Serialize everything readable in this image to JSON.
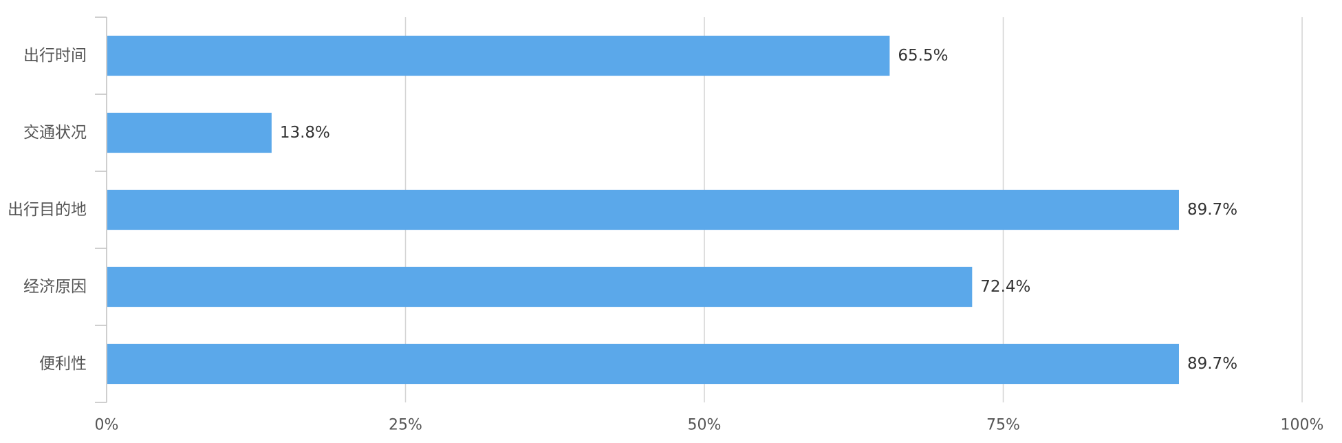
{
  "chart_data": {
    "type": "bar",
    "orientation": "horizontal",
    "categories": [
      "出行时间",
      "交通状况",
      "出行目的地",
      "经济原因",
      "便利性"
    ],
    "values": [
      65.5,
      13.8,
      89.7,
      72.4,
      89.7
    ],
    "value_labels": [
      "65.5%",
      "13.8%",
      "89.7%",
      "72.4%",
      "89.7%"
    ],
    "xlim": [
      0,
      100
    ],
    "x_ticks": [
      0,
      25,
      50,
      75,
      100
    ],
    "x_tick_labels": [
      "0%",
      "25%",
      "50%",
      "75%",
      "100%"
    ],
    "grid": "vertical",
    "legend": "none",
    "colors": {
      "bar": "#5ba8ea",
      "grid": "#d4d4d4",
      "axis": "#bfbfbf",
      "label": "#555555",
      "value_label": "#333333"
    }
  }
}
